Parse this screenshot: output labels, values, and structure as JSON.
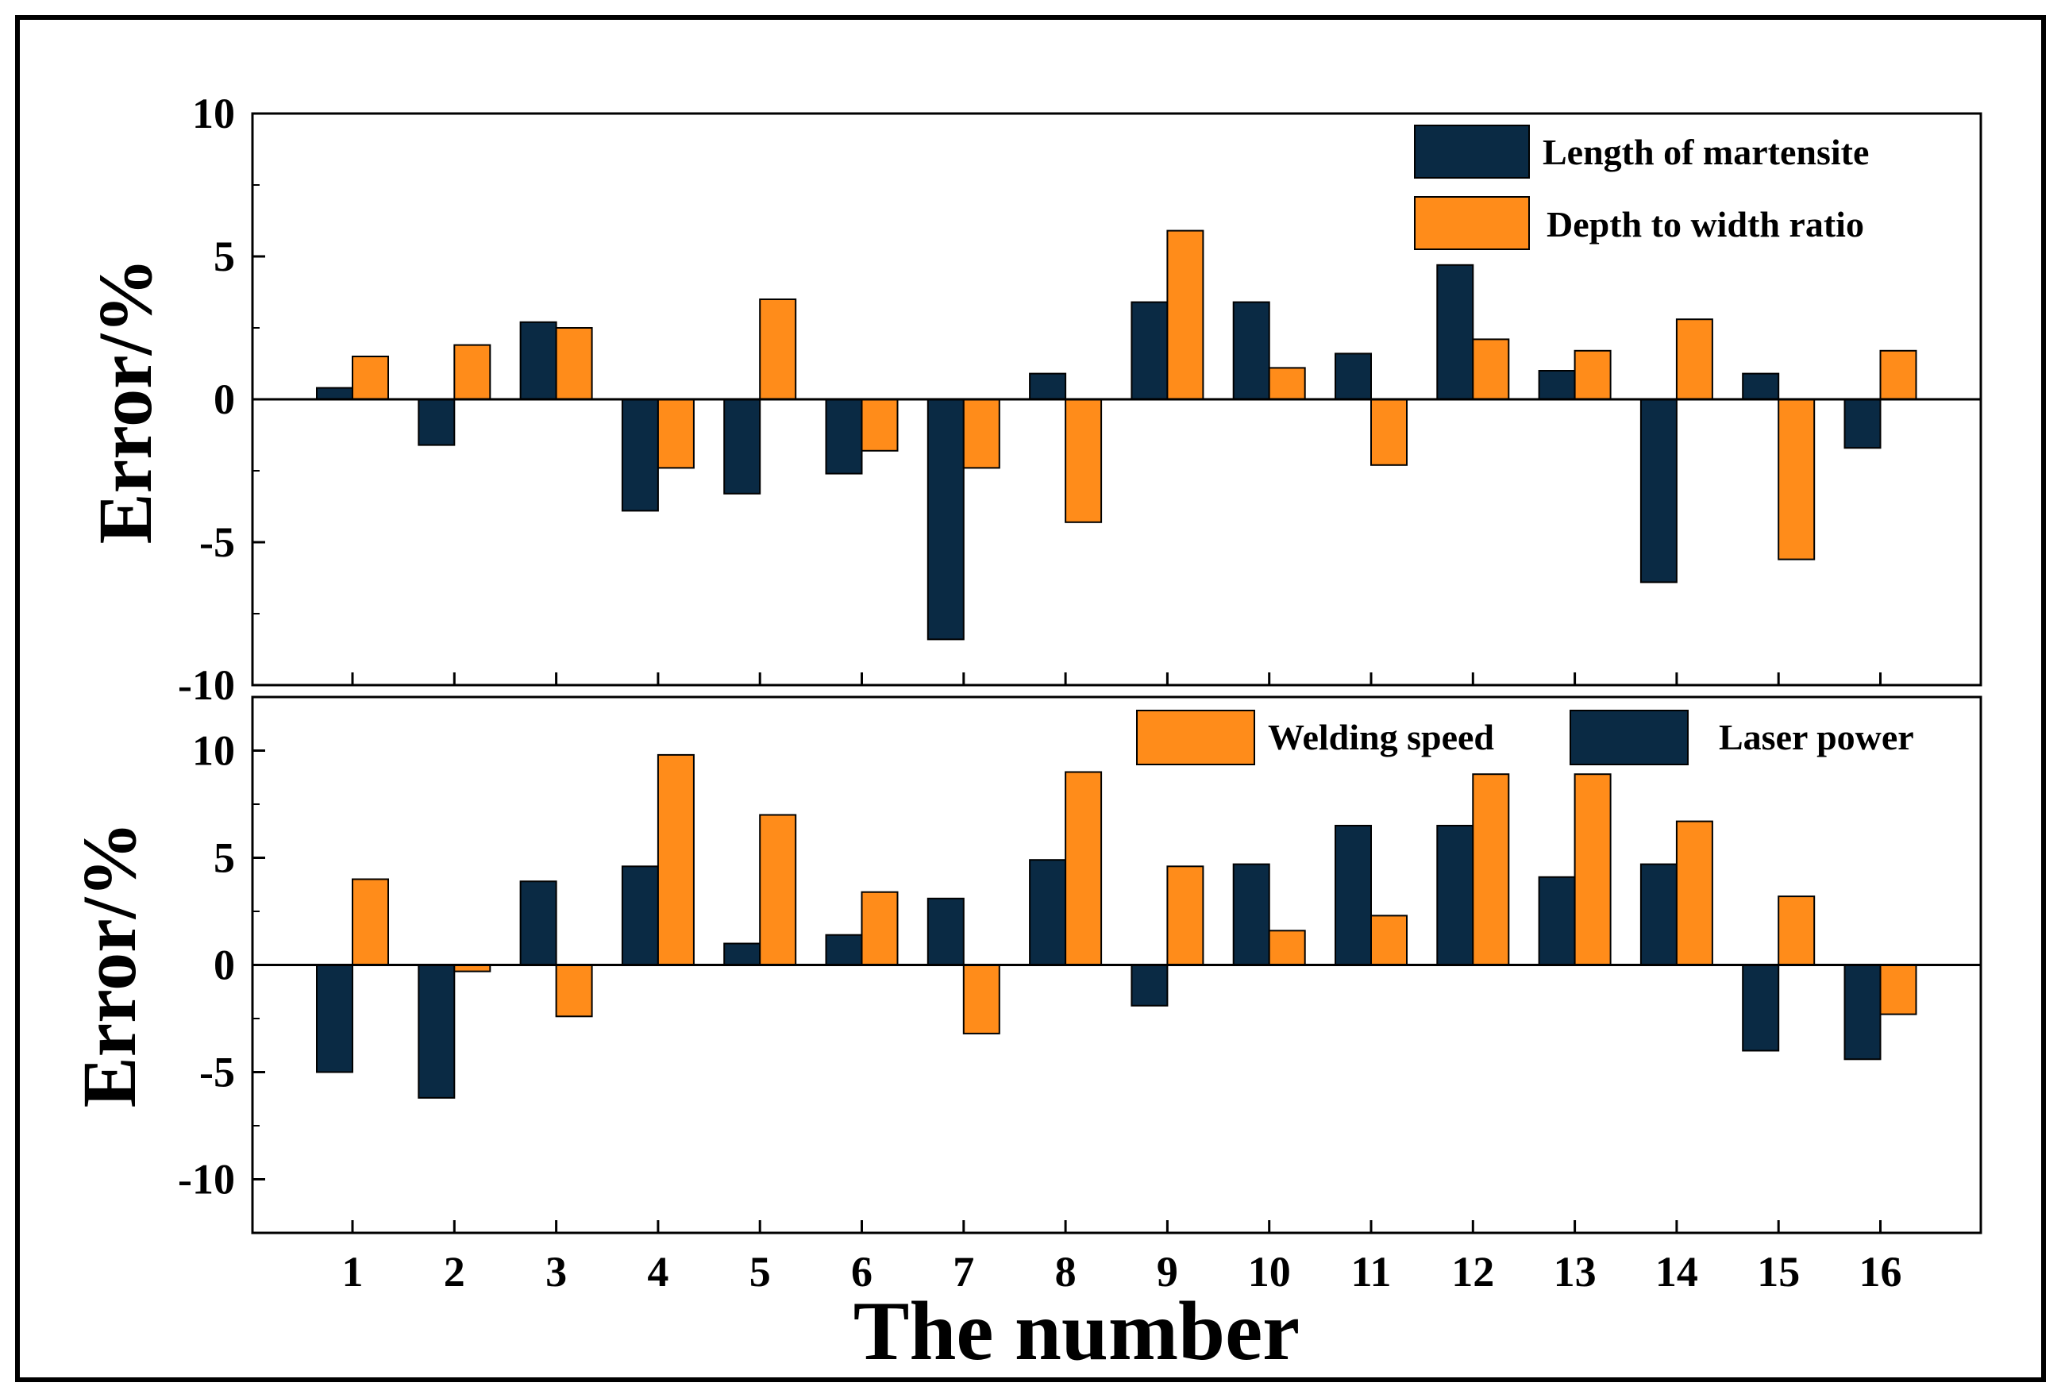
{
  "chart_data": [
    {
      "type": "bar",
      "categories": [
        "1",
        "2",
        "3",
        "4",
        "5",
        "6",
        "7",
        "8",
        "9",
        "10",
        "11",
        "12",
        "13",
        "14",
        "15",
        "16"
      ],
      "series": [
        {
          "name": "Length of martensite",
          "color": "#0a2a44",
          "values": [
            0.4,
            -1.6,
            2.7,
            -3.9,
            -3.3,
            -2.6,
            -8.4,
            0.9,
            3.4,
            3.4,
            1.6,
            4.7,
            1.0,
            -6.4,
            0.9,
            -1.7
          ]
        },
        {
          "name": "Depth to width ratio",
          "color": "#ff8c1a",
          "values": [
            1.5,
            1.9,
            2.5,
            -2.4,
            3.5,
            -1.8,
            -2.4,
            -4.3,
            5.9,
            1.1,
            -2.3,
            2.1,
            1.7,
            2.8,
            -5.6,
            1.7
          ]
        }
      ],
      "ylabel": "Error/%",
      "ylim": [
        -10,
        10
      ],
      "yticks": [
        "10",
        "5",
        "0",
        "-5",
        "-10"
      ],
      "legend_position": "top-right"
    },
    {
      "type": "bar",
      "categories": [
        "1",
        "2",
        "3",
        "4",
        "5",
        "6",
        "7",
        "8",
        "9",
        "10",
        "11",
        "12",
        "13",
        "14",
        "15",
        "16"
      ],
      "series": [
        {
          "name": "Laser power",
          "color": "#0a2a44",
          "values": [
            -5.0,
            -6.2,
            3.9,
            4.6,
            1.0,
            1.4,
            3.1,
            4.9,
            -1.9,
            4.7,
            6.5,
            6.5,
            4.1,
            4.7,
            -4.0,
            -4.4
          ]
        },
        {
          "name": "Welding speed",
          "color": "#ff8c1a",
          "values": [
            4.0,
            -0.3,
            -2.4,
            9.8,
            7.0,
            3.4,
            -3.2,
            9.0,
            4.6,
            1.6,
            2.3,
            8.9,
            8.9,
            6.7,
            3.2,
            -2.3
          ]
        }
      ],
      "ylabel": "Error/%",
      "ylim": [
        -12.5,
        12.5
      ],
      "yticks": [
        "10",
        "5",
        "0",
        "-5",
        "-10"
      ],
      "legend_position": "top-right"
    }
  ],
  "xlabel": "The number",
  "legend_top": [
    {
      "label": "Length of martensite",
      "color": "#0a2a44"
    },
    {
      "label": "Depth to width ratio",
      "color": "#ff8c1a"
    }
  ],
  "legend_bottom": [
    {
      "label": "Welding speed",
      "color": "#ff8c1a"
    },
    {
      "label": "Laser power",
      "color": "#0a2a44"
    }
  ]
}
